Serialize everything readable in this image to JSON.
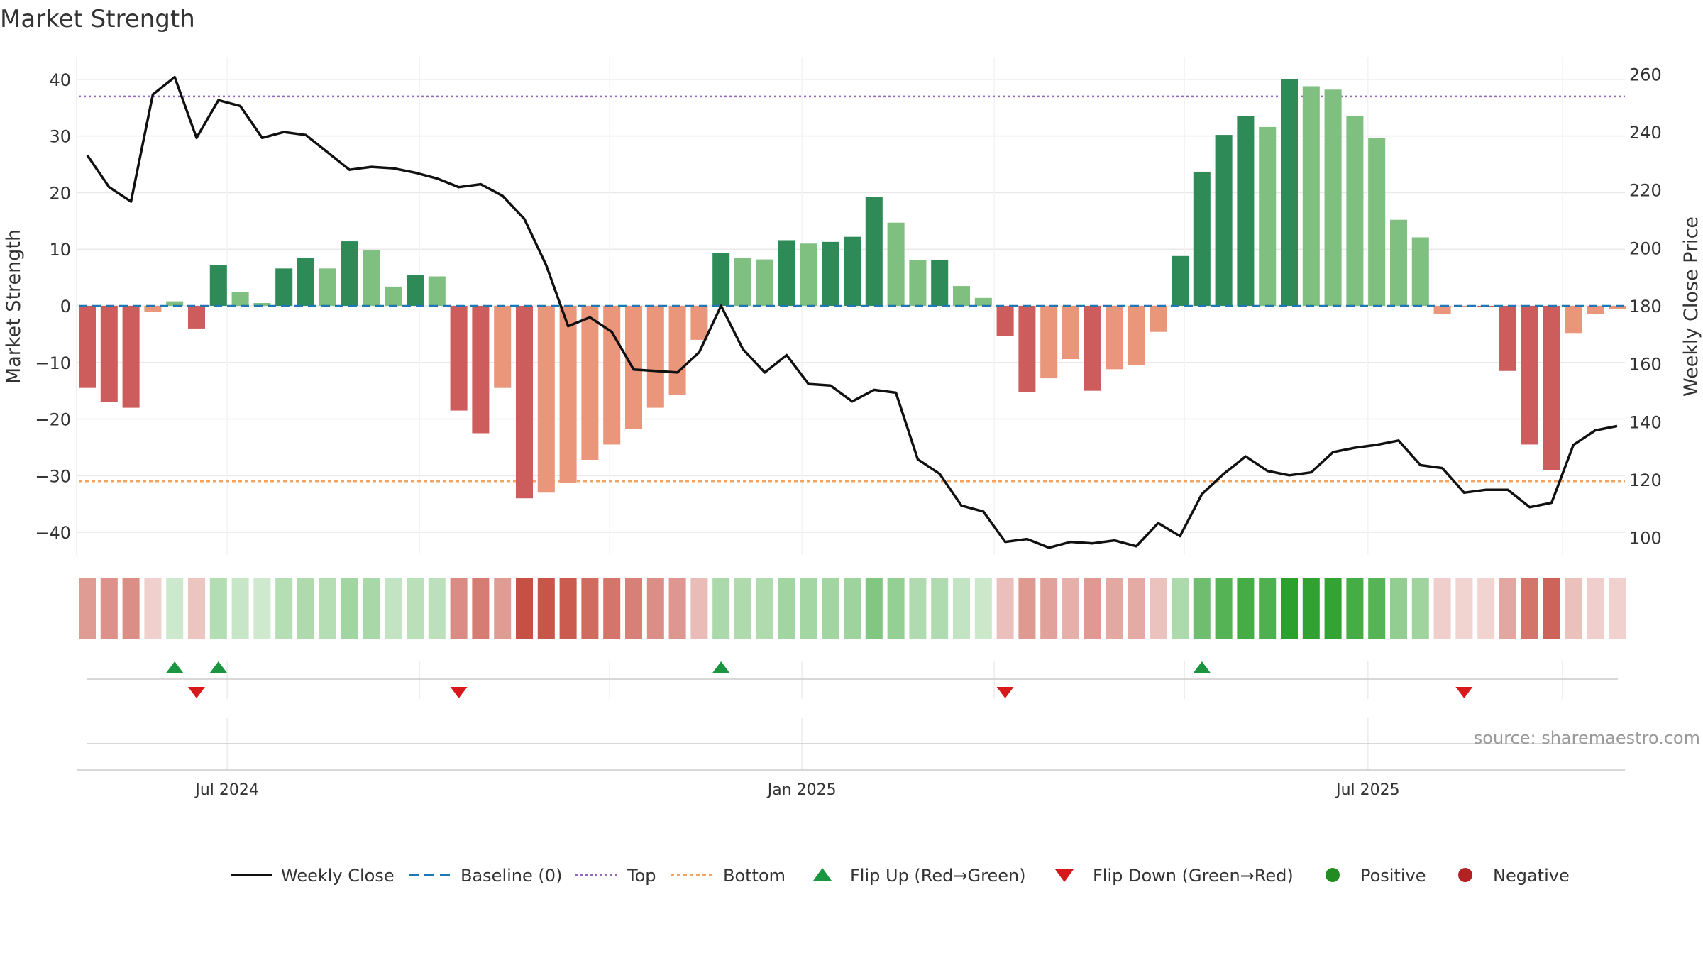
{
  "chart_data": {
    "type": "bar",
    "title": "Market Strength",
    "ylabel_left": "Market Strength",
    "ylabel_right": "Weekly Close Price",
    "ylim_left": [
      -44,
      44
    ],
    "ylim_right": [
      94,
      266
    ],
    "yticks_left": [
      40,
      30,
      20,
      10,
      0,
      -10,
      -20,
      -30,
      -40
    ],
    "ytick_labels_left": [
      "40",
      "30",
      "20",
      "10",
      "0",
      "−10",
      "−20",
      "−30",
      "−40"
    ],
    "yticks_right": [
      260,
      240,
      220,
      200,
      180,
      160,
      140,
      120,
      100
    ],
    "ytick_labels_right": [
      "260",
      "240",
      "220",
      "200",
      "180",
      "160",
      "140",
      "120",
      "100"
    ],
    "top_level": 37,
    "bottom_level": -31,
    "baseline": 0,
    "x_tick_labels": [
      "Jul 2024",
      "Jan 2025",
      "Jul 2025"
    ],
    "x_tick_index": [
      6.4,
      32.7,
      58.6
    ],
    "x_grid_index": [
      6.4,
      15.2,
      23.9,
      32.7,
      41.5,
      50.2,
      58.6,
      67.5
    ],
    "strength": [
      -14.5,
      -17,
      -18,
      -1,
      0.8,
      -4,
      7.2,
      2.4,
      0.5,
      6.6,
      8.4,
      6.6,
      11.4,
      9.9,
      3.4,
      5.5,
      5.2,
      -18.5,
      -22.5,
      -14.5,
      -34,
      -33,
      -31.3,
      -27.2,
      -24.5,
      -21.7,
      -18,
      -15.7,
      -6,
      9.3,
      8.4,
      8.2,
      11.6,
      11,
      11.3,
      12.2,
      19.3,
      14.7,
      8.1,
      8.1,
      3.5,
      1.4,
      -5.3,
      -15.2,
      -12.8,
      -9.4,
      -15,
      -11.2,
      -10.5,
      -4.6,
      8.8,
      23.7,
      30.2,
      33.5,
      31.6,
      40,
      38.8,
      38.2,
      33.6,
      29.7,
      15.2,
      12.1,
      -1.5,
      -0.2,
      -0.2,
      -11.5,
      -24.5,
      -29,
      -4.8,
      -1.5,
      -0.5
    ],
    "price": [
      232,
      221,
      216,
      253,
      259,
      238,
      251,
      249,
      238,
      240,
      239,
      233,
      227,
      228,
      227.5,
      226,
      224,
      221,
      222,
      218,
      210,
      194,
      173,
      176,
      171,
      158,
      157.5,
      157,
      164,
      180,
      165,
      157,
      163,
      153,
      152.5,
      147,
      151,
      150,
      127,
      122,
      111,
      109,
      98.5,
      99.5,
      96.5,
      98.5,
      98,
      99,
      97,
      105,
      100.5,
      115,
      122,
      128,
      123,
      121.5,
      122.5,
      129.5,
      131,
      132,
      133.5,
      125,
      124,
      115.5,
      116.5,
      116.5,
      110.5,
      112,
      132,
      137,
      138.5
    ],
    "flip_up_index": [
      4,
      6,
      29,
      51
    ],
    "flip_down_index": [
      5,
      17,
      42,
      63
    ],
    "legend": [
      "Weekly Close",
      "Baseline (0)",
      "Top",
      "Bottom",
      "Flip Up (Red→Green)",
      "Flip Down (Green→Red)",
      "Positive",
      "Negative"
    ],
    "legend_placement": "bottom-center"
  },
  "annotation": {
    "source": "source: sharemaestro.com"
  },
  "colors": {
    "pos_dark": "#2e8b57",
    "pos_light": "#7fbf7f",
    "neg_dark": "#cd5c5c",
    "neg_light": "#e9967a",
    "price_line": "#111111",
    "baseline": "#1f77b4",
    "top_line": "#9467bd",
    "bottom_line": "#f4a460",
    "flip_up": "#1a9641",
    "flip_down": "#d7191c",
    "legend_positive": "#228b22",
    "legend_negative": "#b22222",
    "grid": "#e9e9e9",
    "axis_text": "#333333",
    "source_text": "#999999"
  }
}
